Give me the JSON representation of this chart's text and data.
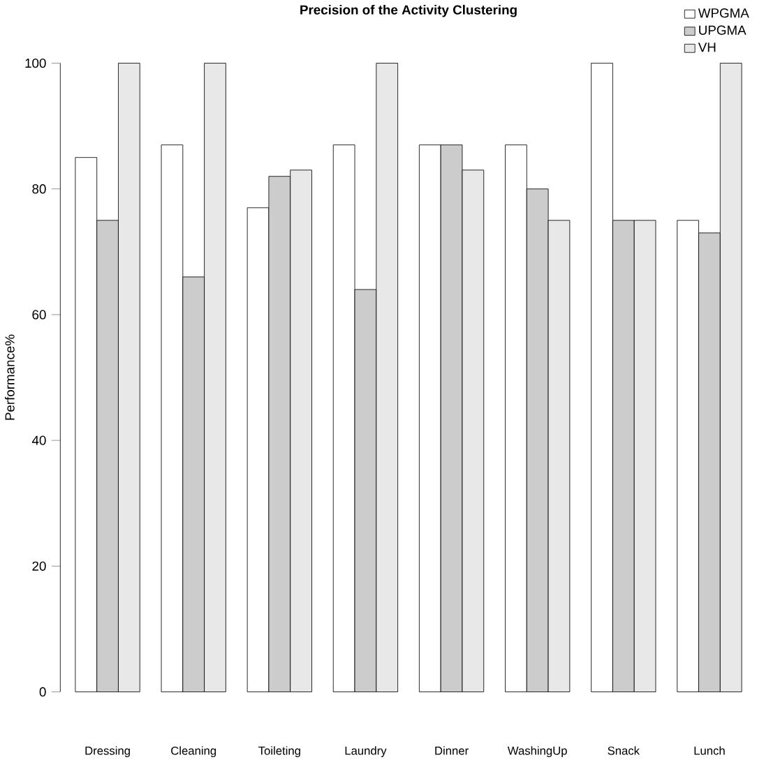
{
  "chart_data": {
    "type": "bar",
    "title": "Precision of the Activity Clustering",
    "ylabel": "Performance%",
    "categories": [
      "Dressing",
      "Cleaning",
      "Toileting",
      "Laundry",
      "Dinner",
      "WashingUp",
      "Snack",
      "Lunch"
    ],
    "series": [
      {
        "name": "WPGMA",
        "color": "#ffffff",
        "values": [
          85,
          87,
          77,
          87,
          87,
          87,
          100,
          75
        ]
      },
      {
        "name": "UPGMA",
        "color": "#cccccc",
        "values": [
          75,
          66,
          82,
          64,
          87,
          80,
          75,
          73
        ]
      },
      {
        "name": "VH",
        "color": "#e8e8e8",
        "values": [
          100,
          100,
          83,
          100,
          83,
          75,
          75,
          100
        ]
      }
    ],
    "ylim": [
      0,
      100
    ],
    "yticks": [
      0,
      20,
      40,
      60,
      80,
      100
    ],
    "grid": false,
    "legend": "top right"
  }
}
